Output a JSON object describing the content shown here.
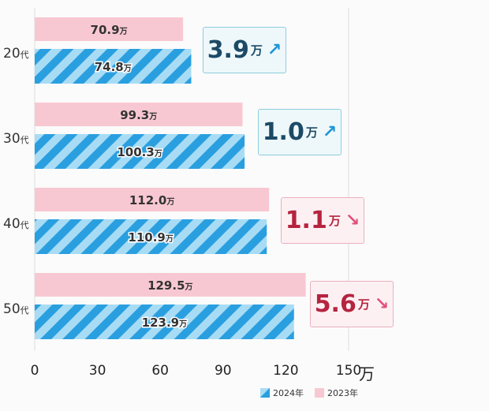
{
  "chart_data": {
    "type": "bar",
    "orientation": "horizontal",
    "categories": [
      "20代",
      "30代",
      "40代",
      "50代"
    ],
    "series": [
      {
        "name": "2023年",
        "values": [
          70.9,
          99.3,
          112.0,
          129.5
        ],
        "labels": [
          "70.9",
          "99.3",
          "112.0",
          "129.5"
        ],
        "color": "#f8c8d2"
      },
      {
        "name": "2024年",
        "values": [
          74.8,
          100.3,
          110.9,
          123.9
        ],
        "labels": [
          "74.8",
          "100.3",
          "110.9",
          "123.9"
        ],
        "color": "#2a9fe0",
        "pattern": "diagonal-stripes"
      }
    ],
    "value_unit": "万",
    "xlim": [
      0,
      150
    ],
    "xticks": [
      "0",
      "30",
      "60",
      "90",
      "120",
      "150"
    ],
    "x_unit": "万",
    "differences": [
      {
        "value": "3.9",
        "unit": "万",
        "direction": "up"
      },
      {
        "value": "1.0",
        "unit": "万",
        "direction": "up"
      },
      {
        "value": "1.1",
        "unit": "万",
        "direction": "down"
      },
      {
        "value": "5.6",
        "unit": "万",
        "direction": "down"
      }
    ],
    "legend": {
      "position": "bottom-right",
      "items": [
        "2024年",
        "2023年"
      ]
    },
    "colors": {
      "up": "#1c4a66",
      "down": "#b5243f"
    }
  }
}
